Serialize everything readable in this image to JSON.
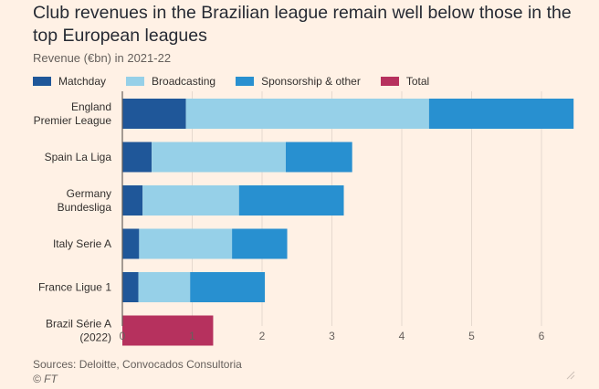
{
  "title": "Club revenues in the Brazilian league remain well below those in the top European leagues",
  "subtitle": "Revenue (€bn) in 2021-22",
  "legend": [
    {
      "name": "Matchday",
      "color": "#1F5799"
    },
    {
      "name": "Broadcasting",
      "color": "#96D0E8"
    },
    {
      "name": "Sponsorship & other",
      "color": "#2890D0"
    },
    {
      "name": "Total",
      "color": "#B6315E"
    }
  ],
  "source": "Sources: Deloitte, Convocados Consultoria",
  "credit": "© FT",
  "chart_data": {
    "type": "bar",
    "orientation": "horizontal",
    "stacked": true,
    "title": "Club revenues in the Brazilian league remain well below those in the top European leagues",
    "subtitle": "Revenue (€bn) in 2021-22",
    "categories": [
      [
        "England",
        "Premier League"
      ],
      [
        "Spain La Liga"
      ],
      [
        "Germany",
        "Bundesliga"
      ],
      [
        "Italy Serie A"
      ],
      [
        "France Ligue 1"
      ],
      [
        "Brazil Série A",
        "(2022)"
      ]
    ],
    "series": [
      {
        "name": "Matchday",
        "color": "#1F5799",
        "values": [
          0.91,
          0.42,
          0.29,
          0.24,
          0.23,
          null
        ]
      },
      {
        "name": "Broadcasting",
        "color": "#96D0E8",
        "values": [
          3.48,
          1.92,
          1.38,
          1.33,
          0.74,
          null
        ]
      },
      {
        "name": "Sponsorship & other",
        "color": "#2890D0",
        "values": [
          2.07,
          0.95,
          1.5,
          0.79,
          1.07,
          null
        ]
      },
      {
        "name": "Total",
        "color": "#B6315E",
        "values": [
          null,
          null,
          null,
          null,
          null,
          1.3
        ]
      }
    ],
    "xticks": [
      0,
      1,
      2,
      3,
      4,
      5,
      6
    ],
    "xlim": [
      0,
      6.5
    ],
    "grid": true,
    "legend_position": "top"
  }
}
